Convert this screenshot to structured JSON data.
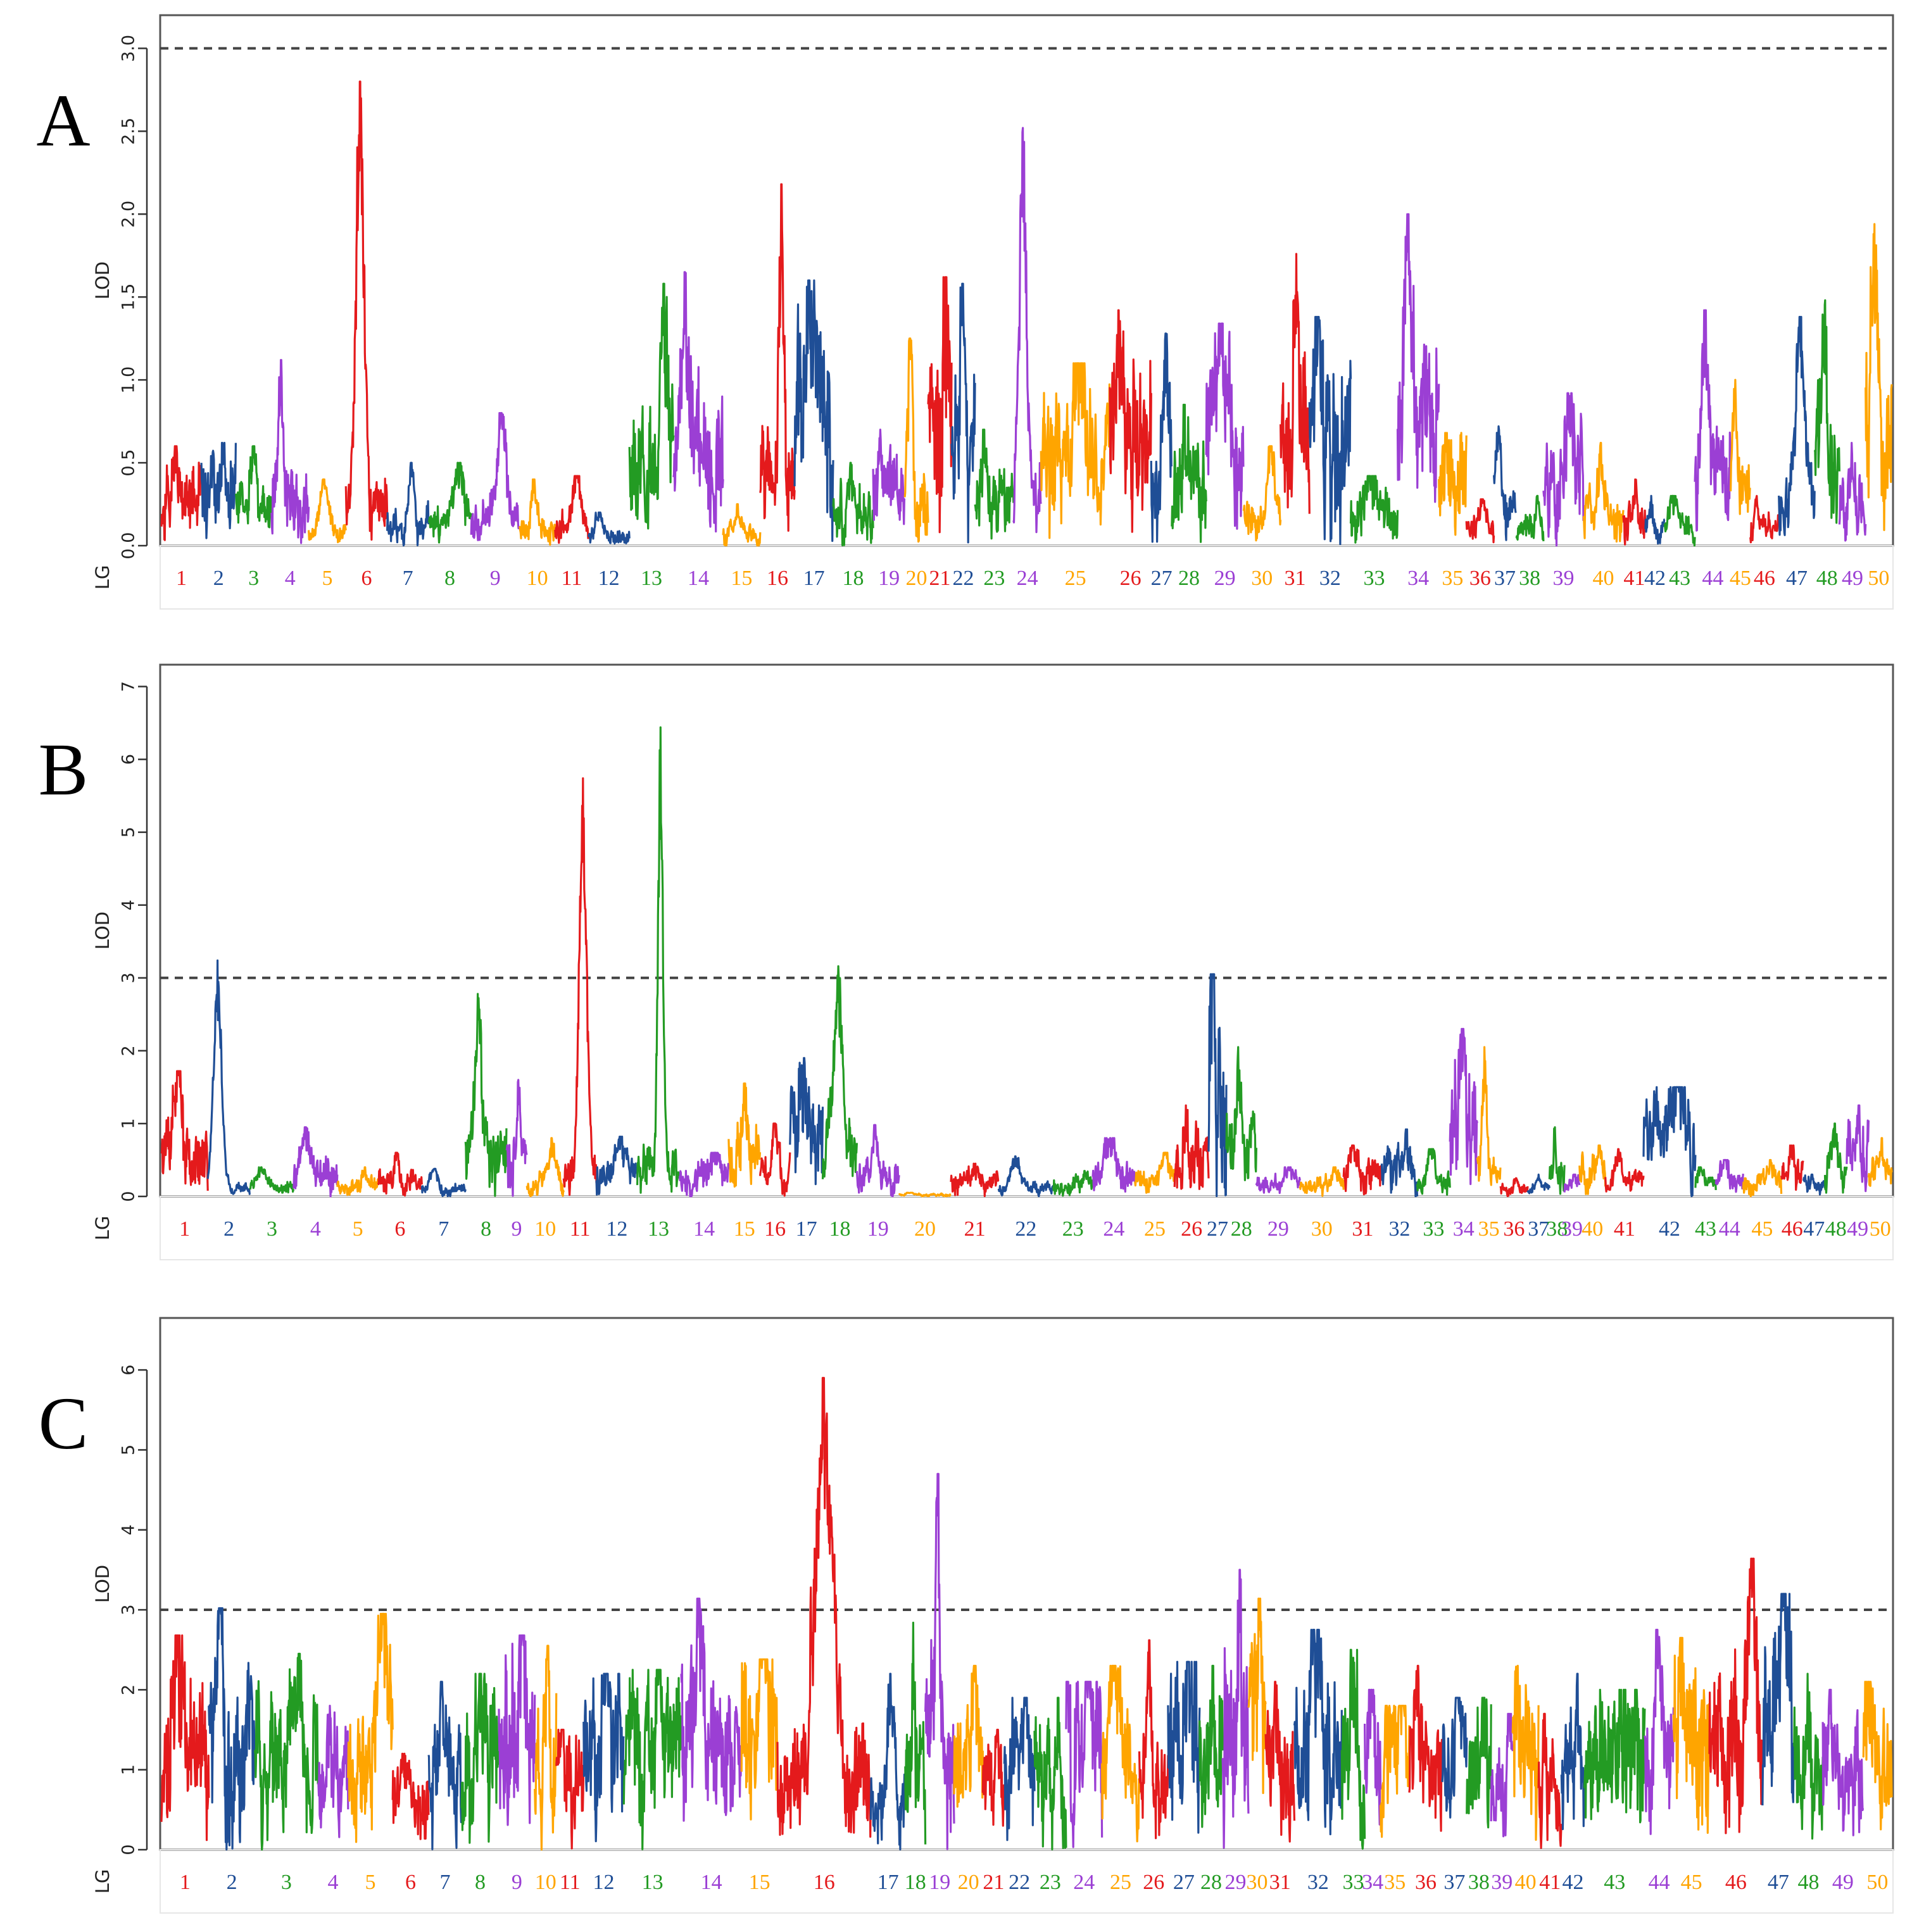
{
  "chart_data": [
    {
      "type": "line",
      "panel": "A",
      "ylabel": "LOD",
      "xlabel": "LG",
      "ylim": [
        0,
        3.2
      ],
      "yticks": [
        "0.0",
        "0.5",
        "1.0",
        "1.5",
        "2.0",
        "2.5",
        "3.0"
      ],
      "threshold": 3.0,
      "seed": 11,
      "lg_labels": [
        "1",
        "2",
        "3",
        "4",
        "5",
        "6",
        "7",
        "8",
        "9",
        "10",
        "11",
        "12",
        "13",
        "14",
        "15",
        "16",
        "17",
        "18",
        "19",
        "20",
        "21",
        "22",
        "23",
        "24",
        "25",
        "26",
        "27",
        "28",
        "29",
        "30",
        "31",
        "32",
        "33",
        "34",
        "35",
        "36",
        "37",
        "38",
        "39",
        "40",
        "41",
        "42",
        "43",
        "44",
        "45",
        "46",
        "47",
        "48",
        "49",
        "50"
      ],
      "lg_widths": [
        58,
        50,
        52,
        54,
        54,
        60,
        60,
        62,
        70,
        52,
        48,
        60,
        64,
        72,
        54,
        50,
        56,
        58,
        46,
        34,
        34,
        34,
        56,
        40,
        100,
        60,
        30,
        50,
        54,
        54,
        42,
        60,
        68,
        60,
        40,
        40,
        32,
        40,
        58,
        58,
        32,
        28,
        44,
        52,
        28,
        42,
        52,
        36,
        38,
        38
      ],
      "lg_baseline": [
        0.25,
        0.3,
        0.22,
        0.3,
        0.08,
        0.25,
        0.12,
        0.14,
        0.15,
        0.1,
        0.12,
        0.06,
        0.5,
        0.5,
        0.08,
        0.4,
        0.8,
        0.2,
        0.3,
        0.3,
        0.8,
        0.6,
        0.25,
        0.3,
        0.5,
        0.6,
        0.45,
        0.35,
        0.6,
        0.15,
        0.6,
        0.7,
        0.2,
        0.7,
        0.4,
        0.1,
        0.2,
        0.1,
        0.4,
        0.2,
        0.15,
        0.1,
        0.1,
        0.4,
        0.3,
        0.1,
        0.25,
        0.5,
        0.25,
        0.6
      ],
      "lg_peak": [
        0.6,
        0.62,
        0.6,
        1.12,
        0.4,
        2.8,
        0.5,
        0.5,
        0.8,
        0.4,
        0.42,
        0.2,
        1.58,
        1.65,
        0.25,
        2.18,
        1.6,
        0.5,
        0.7,
        1.25,
        1.62,
        1.58,
        0.7,
        2.52,
        1.1,
        1.42,
        1.28,
        0.85,
        1.34,
        0.6,
        1.76,
        1.38,
        0.42,
        2.0,
        0.68,
        0.28,
        0.72,
        0.3,
        0.92,
        0.62,
        0.4,
        0.3,
        0.3,
        1.42,
        1.0,
        0.3,
        1.38,
        1.48,
        0.62,
        1.94
      ]
    },
    {
      "type": "line",
      "panel": "B",
      "ylabel": "LOD",
      "xlabel": "LG",
      "ylim": [
        0,
        7.3
      ],
      "yticks": [
        "0",
        "1",
        "2",
        "3",
        "4",
        "5",
        "6",
        "7"
      ],
      "threshold": 3.0,
      "seed": 23,
      "lg_labels": [
        "1",
        "2",
        "3",
        "4",
        "5",
        "6",
        "7",
        "8",
        "9",
        "10",
        "11",
        "12",
        "13",
        "14",
        "15",
        "16",
        "17",
        "18",
        "19",
        "20",
        "21",
        "22",
        "23",
        "24",
        "25",
        "26",
        "27",
        "28",
        "29",
        "30",
        "31",
        "32",
        "33",
        "34",
        "35",
        "36",
        "37",
        "38",
        "39",
        "40",
        "41",
        "42",
        "43",
        "44",
        "45",
        "46",
        "47",
        "48",
        "49",
        "50"
      ],
      "lg_widths": [
        68,
        62,
        64,
        64,
        60,
        64,
        64,
        60,
        30,
        54,
        48,
        60,
        62,
        72,
        46,
        44,
        48,
        50,
        62,
        76,
        70,
        80,
        58,
        62,
        58,
        50,
        26,
        44,
        64,
        64,
        56,
        52,
        48,
        40,
        34,
        40,
        32,
        22,
        22,
        38,
        56,
        76,
        30,
        40,
        56,
        32,
        32,
        32,
        32,
        34
      ],
      "lg_baseline": [
        0.6,
        0.1,
        0.1,
        0.3,
        0.15,
        0.2,
        0.1,
        0.6,
        0.5,
        0.2,
        0.3,
        0.3,
        0.4,
        0.3,
        0.6,
        0.3,
        1.0,
        0.5,
        0.3,
        0.02,
        0.2,
        0.1,
        0.15,
        0.3,
        0.2,
        0.6,
        1.8,
        0.6,
        0.15,
        0.15,
        0.3,
        0.4,
        0.2,
        1.3,
        0.4,
        0.1,
        0.1,
        0.3,
        0.15,
        0.3,
        0.2,
        0.8,
        0.15,
        0.2,
        0.2,
        0.3,
        0.15,
        0.3,
        0.6,
        0.3
      ],
      "lg_peak": [
        1.72,
        3.24,
        0.4,
        0.95,
        0.4,
        0.6,
        0.38,
        2.78,
        1.6,
        0.8,
        5.74,
        0.82,
        6.44,
        0.6,
        1.55,
        1.0,
        1.9,
        3.16,
        0.98,
        0.05,
        0.45,
        0.55,
        0.35,
        0.8,
        0.6,
        1.25,
        3.05,
        2.05,
        0.4,
        0.4,
        0.7,
        0.92,
        0.65,
        2.3,
        2.05,
        0.25,
        0.3,
        0.95,
        0.3,
        0.7,
        0.65,
        1.5,
        0.4,
        0.5,
        0.5,
        0.7,
        0.3,
        1.0,
        1.25,
        0.8
      ]
    },
    {
      "type": "line",
      "panel": "C",
      "ylabel": "LOD",
      "xlabel": "LG",
      "ylim": [
        0,
        6.65
      ],
      "yticks": [
        "0",
        "1",
        "2",
        "3",
        "4",
        "5",
        "6"
      ],
      "threshold": 3.0,
      "seed": 37,
      "lg_labels": [
        "1",
        "2",
        "3",
        "4",
        "5",
        "6",
        "7",
        "8",
        "9",
        "10",
        "11",
        "12",
        "13",
        "14",
        "15",
        "16",
        "17",
        "18",
        "19",
        "20",
        "21",
        "22",
        "23",
        "24",
        "25",
        "26",
        "27",
        "28",
        "29",
        "30",
        "31",
        "32",
        "33",
        "34",
        "35",
        "36",
        "37",
        "38",
        "39",
        "40",
        "41",
        "42",
        "43",
        "44",
        "45",
        "46",
        "47",
        "48",
        "49",
        "50"
      ],
      "lg_widths": [
        66,
        64,
        88,
        42,
        62,
        50,
        46,
        52,
        50,
        30,
        38,
        56,
        80,
        84,
        50,
        130,
        48,
        28,
        40,
        40,
        30,
        42,
        44,
        50,
        52,
        40,
        44,
        32,
        36,
        24,
        40,
        66,
        32,
        22,
        40,
        46,
        34,
        34,
        30,
        36,
        32,
        32,
        84,
        40,
        50,
        74,
        44,
        40,
        56,
        40
      ],
      "lg_baseline": [
        1.2,
        1.3,
        1.0,
        0.9,
        1.2,
        0.6,
        1.0,
        1.1,
        1.5,
        1.2,
        0.9,
        1.2,
        1.3,
        1.3,
        1.3,
        0.9,
        0.6,
        1.0,
        1.3,
        1.0,
        0.8,
        1.1,
        1.0,
        1.3,
        0.9,
        0.9,
        1.4,
        1.2,
        1.6,
        1.6,
        1.0,
        1.3,
        1.3,
        1.0,
        1.0,
        0.9,
        1.0,
        1.0,
        0.8,
        1.3,
        0.8,
        0.9,
        1.2,
        1.0,
        1.4,
        1.3,
        1.4,
        1.0,
        1.0,
        1.0
      ],
      "lg_peak": [
        2.68,
        3.02,
        2.45,
        1.8,
        2.95,
        1.2,
        2.1,
        2.2,
        2.68,
        2.55,
        1.5,
        2.2,
        2.25,
        3.14,
        2.38,
        5.9,
        2.2,
        2.84,
        4.7,
        2.3,
        1.5,
        1.9,
        1.9,
        2.1,
        2.3,
        2.62,
        2.35,
        2.3,
        3.5,
        3.14,
        2.1,
        2.75,
        2.5,
        2.0,
        1.8,
        2.3,
        1.9,
        1.9,
        1.7,
        2.3,
        1.7,
        2.2,
        2.0,
        2.75,
        2.65,
        3.64,
        3.2,
        2.2,
        2.0,
        2.1
      ]
    }
  ],
  "panel_letters": [
    "A",
    "B",
    "C"
  ],
  "threshold_labels": [
    "3.0",
    "3",
    "3"
  ],
  "colors": [
    "#e41a1c",
    "#1f4e96",
    "#239b23",
    "#9b3fd4",
    "#ffa500"
  ]
}
